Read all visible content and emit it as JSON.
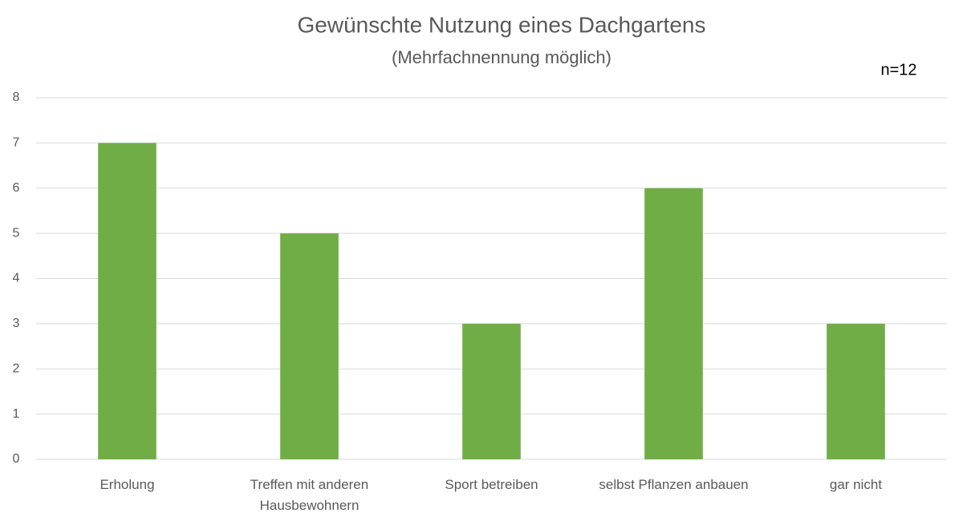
{
  "chart_data": {
    "type": "bar",
    "title": "Gewünschte Nutzung eines Dachgartens",
    "subtitle": "(Mehrfachnennung möglich)",
    "annotation": "n=12",
    "categories": [
      "Erholung",
      "Treffen mit anderen Hausbewohnern",
      "Sport betreiben",
      "selbst Pflanzen anbauen",
      "gar nicht"
    ],
    "values": [
      7,
      5,
      3,
      6,
      3
    ],
    "color": "#70ad47",
    "ylim": [
      0,
      8
    ],
    "yticks": [
      0,
      1,
      2,
      3,
      4,
      5,
      6,
      7,
      8
    ],
    "grid": true
  }
}
